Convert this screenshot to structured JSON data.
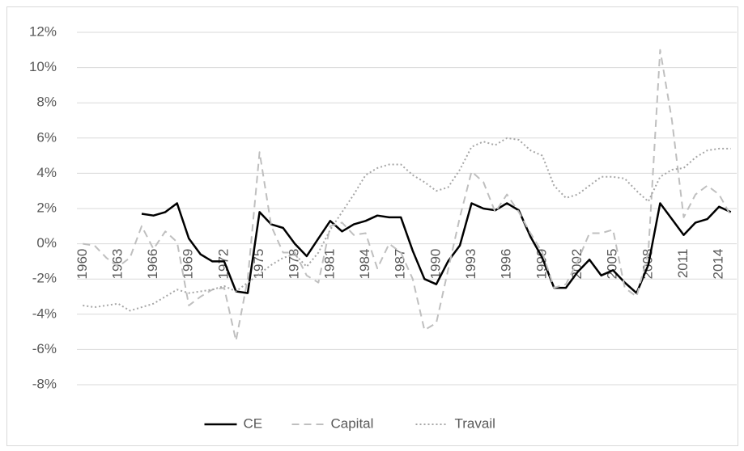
{
  "chart_data": {
    "type": "line",
    "categories": [
      "1960",
      null,
      null,
      "1963",
      null,
      null,
      "1966",
      null,
      null,
      "1969",
      null,
      null,
      "1972",
      null,
      null,
      "1975",
      null,
      null,
      "1978",
      null,
      null,
      "1981",
      null,
      null,
      "1984",
      null,
      null,
      "1987",
      null,
      null,
      "1990",
      null,
      null,
      "1993",
      null,
      null,
      "1996",
      null,
      null,
      "1999",
      null,
      null,
      "2002",
      null,
      null,
      "2005",
      null,
      null,
      "2008",
      null,
      null,
      "2011",
      null,
      null,
      "2014",
      null
    ],
    "series": [
      {
        "name": "CE",
        "color": "#000000",
        "style": "solid",
        "values": [
          null,
          null,
          null,
          null,
          null,
          1.7,
          1.6,
          1.8,
          2.3,
          0.3,
          -0.6,
          -1.0,
          -1.0,
          -2.7,
          -2.8,
          1.8,
          1.1,
          0.9,
          0.0,
          -0.7,
          0.3,
          1.3,
          0.7,
          1.1,
          1.3,
          1.6,
          1.5,
          1.5,
          -0.4,
          -2.0,
          -2.3,
          -1.0,
          -0.1,
          2.3,
          2.0,
          1.9,
          2.3,
          1.9,
          0.4,
          -0.8,
          -2.5,
          -2.5,
          -1.6,
          -0.9,
          -1.8,
          -1.5,
          -2.2,
          -2.8,
          -1.2,
          2.3,
          1.4,
          0.5,
          1.2,
          1.4,
          2.1,
          1.8
        ]
      },
      {
        "name": "Capital",
        "color": "#bfbfbf",
        "style": "dashed",
        "values": [
          0.0,
          -0.1,
          -0.8,
          -1.3,
          -0.8,
          1.0,
          -0.3,
          0.7,
          0.1,
          -3.5,
          -3.0,
          -2.6,
          -2.5,
          -5.5,
          -2.0,
          5.2,
          1.0,
          -0.5,
          -0.5,
          -1.8,
          -2.2,
          1.0,
          1.2,
          0.5,
          0.6,
          -1.4,
          0.0,
          -0.5,
          -2.0,
          -4.9,
          -4.5,
          -1.5,
          1.5,
          4.1,
          3.5,
          1.8,
          2.8,
          1.8,
          0.6,
          -0.5,
          -2.5,
          -2.3,
          -1.0,
          0.6,
          0.6,
          0.8,
          -2.5,
          -3.0,
          -0.5,
          11.0,
          7.0,
          1.5,
          2.8,
          3.3,
          2.8,
          1.6
        ]
      },
      {
        "name": "Travail",
        "color": "#a6a6a6",
        "style": "dotted",
        "values": [
          -3.5,
          -3.6,
          -3.5,
          -3.4,
          -3.8,
          -3.6,
          -3.4,
          -3.0,
          -2.6,
          -2.8,
          -2.7,
          -2.6,
          -2.4,
          -2.7,
          -2.2,
          -1.7,
          -1.2,
          -0.8,
          -0.6,
          -1.3,
          -0.5,
          0.8,
          1.8,
          2.8,
          3.9,
          4.3,
          4.5,
          4.5,
          3.9,
          3.5,
          3.0,
          3.2,
          4.2,
          5.5,
          5.8,
          5.6,
          6.0,
          5.9,
          5.3,
          5.0,
          3.3,
          2.6,
          2.8,
          3.3,
          3.8,
          3.8,
          3.7,
          3.0,
          2.4,
          3.8,
          4.2,
          4.3,
          4.9,
          5.3,
          5.4,
          5.4
        ]
      }
    ],
    "ylim": [
      -8,
      12
    ],
    "yticks": [
      {
        "value": -8,
        "label": "-8%"
      },
      {
        "value": -6,
        "label": "-6%"
      },
      {
        "value": -4,
        "label": "-4%"
      },
      {
        "value": -2,
        "label": "-2%"
      },
      {
        "value": 0,
        "label": "0%"
      },
      {
        "value": 2,
        "label": "2%"
      },
      {
        "value": 4,
        "label": "4%"
      },
      {
        "value": 6,
        "label": "6%"
      },
      {
        "value": 8,
        "label": "8%"
      },
      {
        "value": 10,
        "label": "10%"
      },
      {
        "value": 12,
        "label": "12%"
      }
    ],
    "grid": true,
    "legend": "bottom"
  }
}
